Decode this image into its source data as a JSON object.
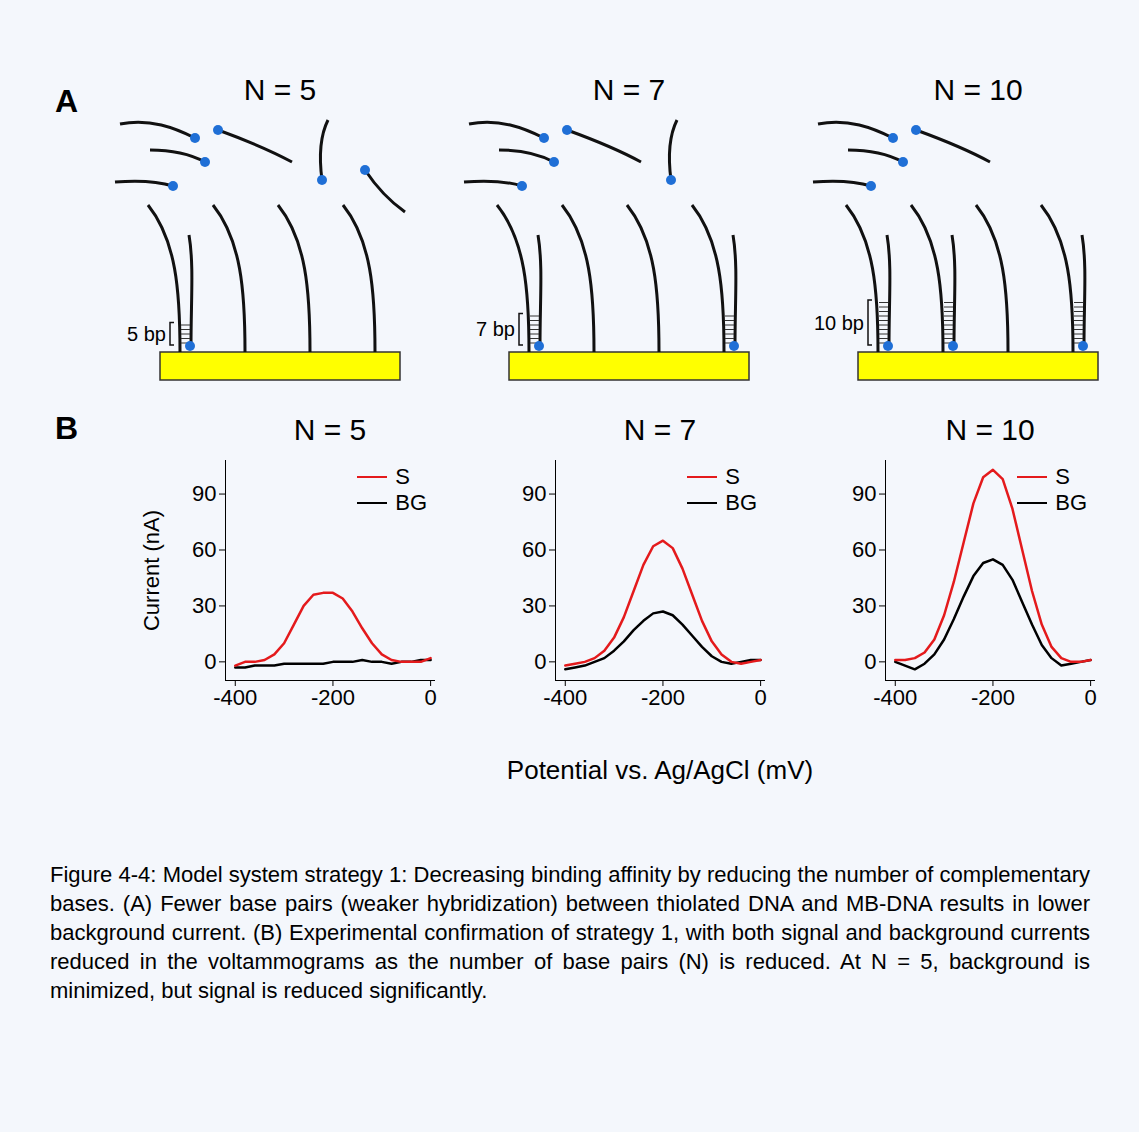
{
  "panel_A": {
    "label": "A",
    "diagrams": [
      {
        "title": "N = 5",
        "base_pairs": 5,
        "bracket_label": "5 bp",
        "bound": [
          true,
          false,
          false,
          false
        ]
      },
      {
        "title": "N = 7",
        "base_pairs": 7,
        "bracket_label": "7 bp",
        "bound": [
          true,
          false,
          false,
          true
        ]
      },
      {
        "title": "N = 10",
        "base_pairs": 10,
        "bracket_label": "10 bp",
        "bound": [
          true,
          true,
          false,
          true
        ]
      }
    ]
  },
  "panel_B": {
    "label": "B",
    "x_label": "Potential vs. Ag/AgCl (mV)"
  },
  "chart_data": [
    {
      "type": "line",
      "title": "N = 5",
      "y_label": "Current (nA)",
      "x": [
        -400,
        -380,
        -360,
        -340,
        -320,
        -300,
        -280,
        -260,
        -240,
        -220,
        -200,
        -180,
        -160,
        -140,
        -120,
        -100,
        -80,
        -60,
        -40,
        -20,
        0
      ],
      "series": [
        {
          "name": "S",
          "color": "#e41a1c",
          "values": [
            -2,
            0,
            0,
            1,
            4,
            10,
            20,
            30,
            36,
            37,
            37,
            34,
            27,
            18,
            10,
            4,
            1,
            0,
            0,
            0,
            2
          ]
        },
        {
          "name": "BG",
          "color": "#000000",
          "values": [
            -3,
            -3,
            -2,
            -2,
            -2,
            -1,
            -1,
            -1,
            -1,
            -1,
            0,
            0,
            0,
            1,
            0,
            0,
            -1,
            0,
            0,
            1,
            1
          ]
        }
      ],
      "xlim": [
        -420,
        10
      ],
      "ylim": [
        -10,
        108
      ],
      "xticks": [
        -400,
        -200,
        0
      ],
      "yticks": [
        0,
        30,
        60,
        90
      ],
      "legend": "top-right"
    },
    {
      "type": "line",
      "title": "N = 7",
      "x": [
        -400,
        -380,
        -360,
        -340,
        -320,
        -300,
        -280,
        -260,
        -240,
        -220,
        -200,
        -180,
        -160,
        -140,
        -120,
        -100,
        -80,
        -60,
        -40,
        -20,
        0
      ],
      "series": [
        {
          "name": "S",
          "color": "#e41a1c",
          "values": [
            -2,
            -1,
            0,
            2,
            6,
            13,
            24,
            38,
            52,
            62,
            65,
            61,
            50,
            36,
            22,
            11,
            4,
            0,
            -1,
            0,
            1
          ]
        },
        {
          "name": "BG",
          "color": "#000000",
          "values": [
            -4,
            -3,
            -2,
            0,
            2,
            6,
            11,
            17,
            22,
            26,
            27,
            25,
            20,
            14,
            8,
            3,
            0,
            -1,
            0,
            1,
            1
          ]
        }
      ],
      "xlim": [
        -420,
        10
      ],
      "ylim": [
        -10,
        108
      ],
      "xticks": [
        -400,
        -200,
        0
      ],
      "yticks": [
        0,
        30,
        60,
        90
      ],
      "legend": "top-right"
    },
    {
      "type": "line",
      "title": "N = 10",
      "x": [
        -400,
        -380,
        -360,
        -340,
        -320,
        -300,
        -280,
        -260,
        -240,
        -220,
        -200,
        -180,
        -160,
        -140,
        -120,
        -100,
        -80,
        -60,
        -40,
        -20,
        0
      ],
      "series": [
        {
          "name": "S",
          "color": "#e41a1c",
          "values": [
            1,
            1,
            2,
            5,
            12,
            25,
            43,
            64,
            85,
            99,
            103,
            98,
            82,
            60,
            38,
            20,
            8,
            2,
            0,
            0,
            1
          ]
        },
        {
          "name": "BG",
          "color": "#000000",
          "values": [
            0,
            -2,
            -4,
            -1,
            4,
            12,
            23,
            35,
            46,
            53,
            55,
            52,
            44,
            32,
            20,
            9,
            2,
            -2,
            -1,
            0,
            1
          ]
        }
      ],
      "xlim": [
        -420,
        10
      ],
      "ylim": [
        -10,
        108
      ],
      "xticks": [
        -400,
        -200,
        0
      ],
      "yticks": [
        0,
        30,
        60,
        90
      ],
      "legend": "top-right"
    }
  ],
  "caption": "Figure 4-4:   Model system strategy 1: Decreasing binding affinity by reducing the number of complementary bases. (A) Fewer base pairs (weaker hybridization) between thiolated DNA and MB-DNA results in lower background current. (B) Experimental confirmation of strategy 1, with both signal and background currents reduced in the voltammograms as the number of base pairs (N) is reduced. At N = 5, background is minimized, but signal is reduced significantly."
}
